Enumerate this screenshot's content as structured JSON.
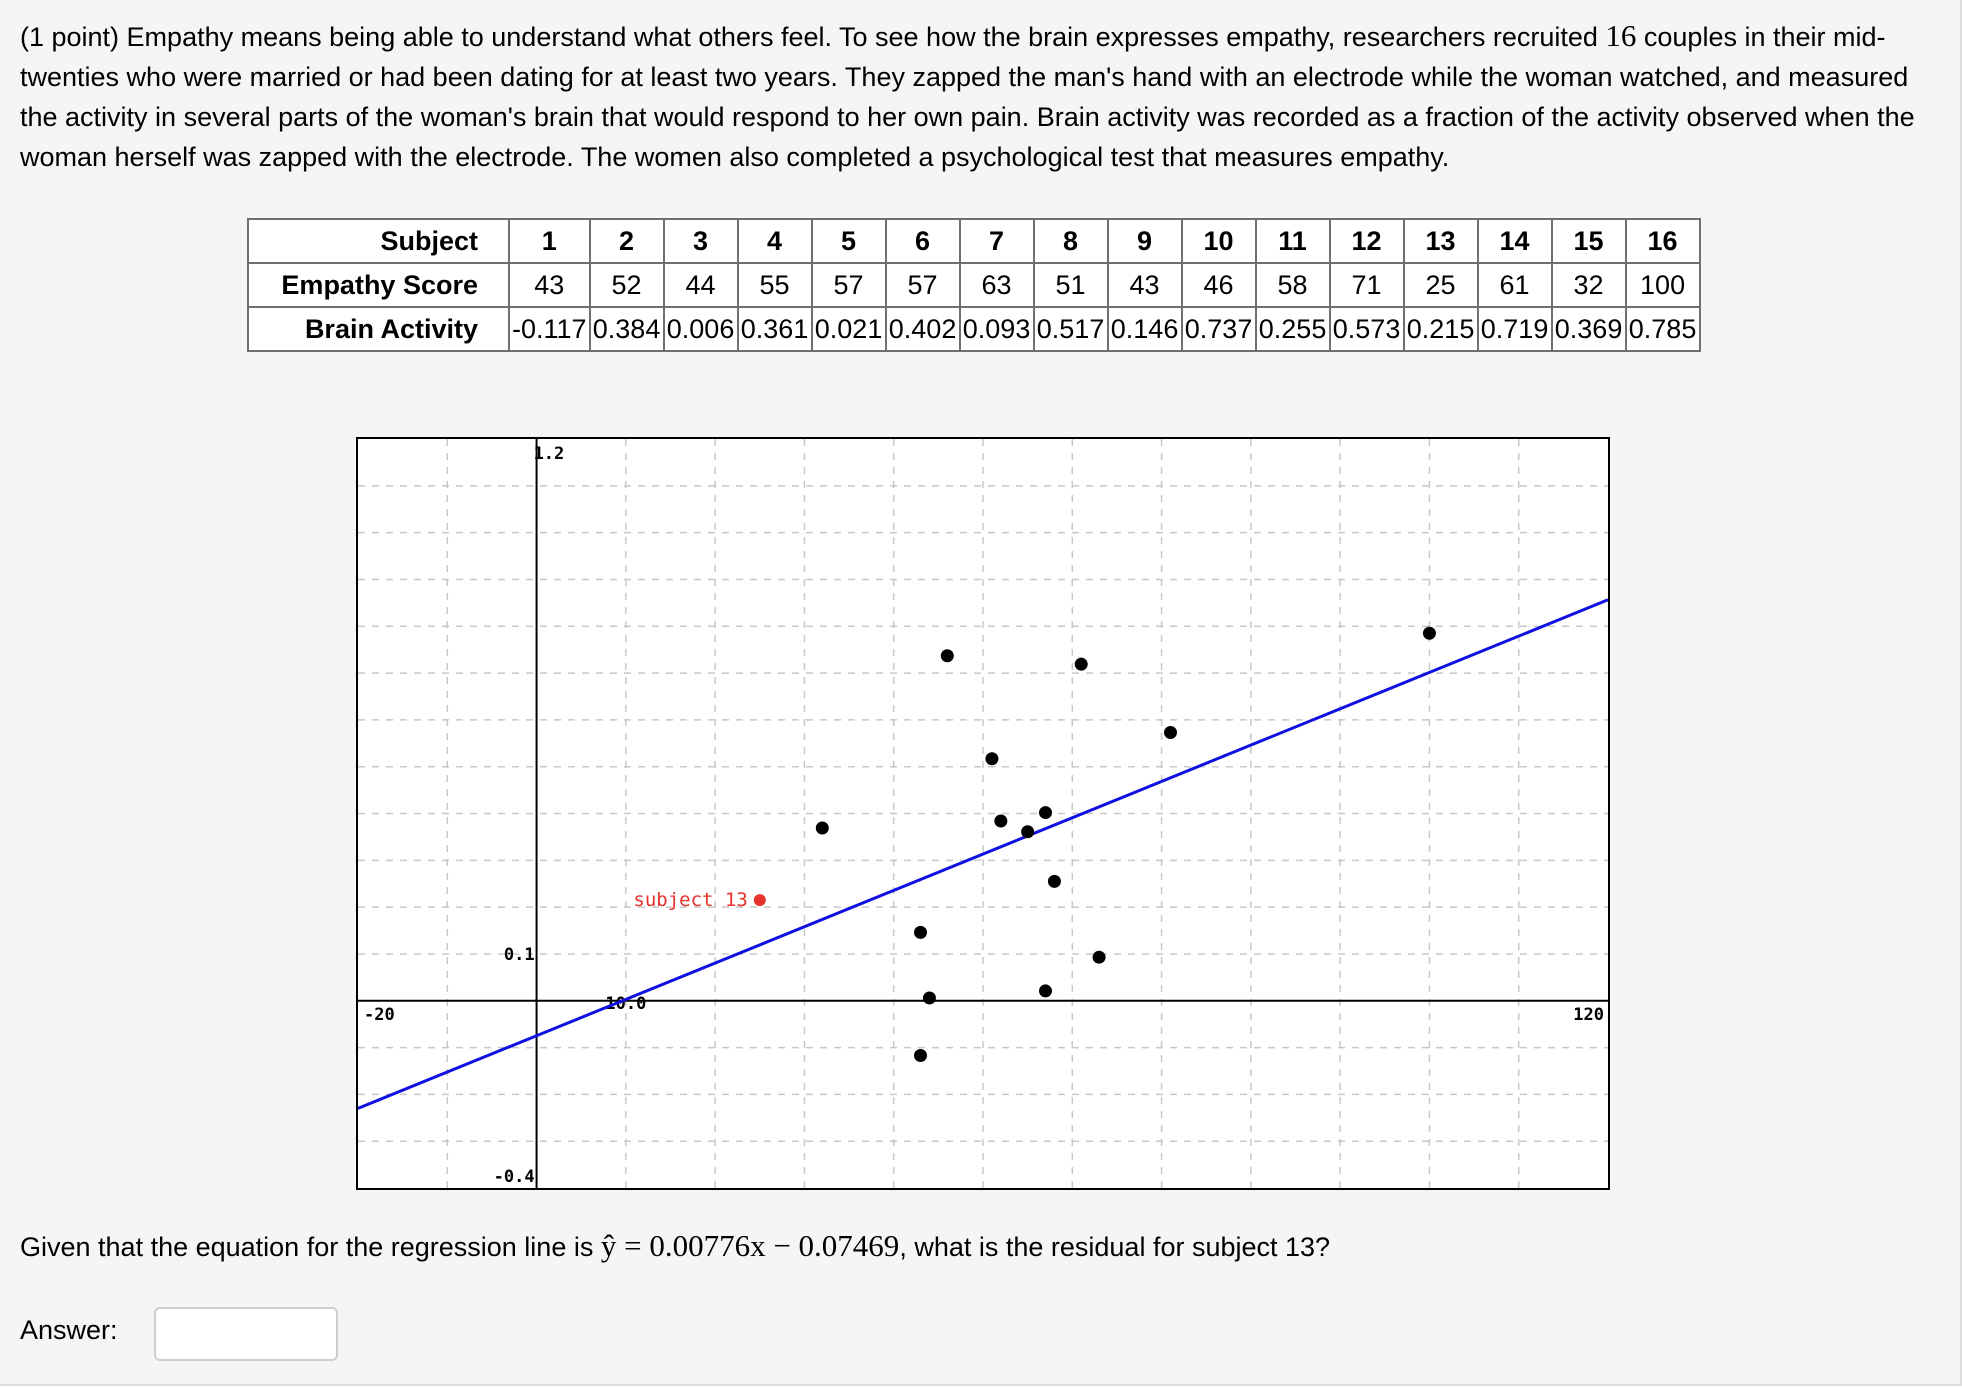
{
  "problem": {
    "text_before": "(1 point) Empathy means being able to understand what others feel. To see how the brain expresses empathy, researchers recruited ",
    "count": "16",
    "text_after": " couples in their mid-twenties who were married or had been dating for at least two years. They zapped the man's hand with an electrode while the woman watched, and measured the activity in several parts of the woman's brain that would respond to her own pain. Brain activity was recorded as a fraction of the activity observed when the woman herself was zapped with the electrode. The women also completed a psychological test that measures empathy."
  },
  "table": {
    "row_labels": [
      "Subject",
      "Empathy Score",
      "Brain Activity"
    ],
    "subjects": [
      "1",
      "2",
      "3",
      "4",
      "5",
      "6",
      "7",
      "8",
      "9",
      "10",
      "11",
      "12",
      "13",
      "14",
      "15",
      "16"
    ],
    "empathy_scores": [
      "43",
      "52",
      "44",
      "55",
      "57",
      "57",
      "63",
      "51",
      "43",
      "46",
      "58",
      "71",
      "25",
      "61",
      "32",
      "100"
    ],
    "brain_activity": [
      "-0.117",
      "0.384",
      "0.006",
      "0.361",
      "0.021",
      "0.402",
      "0.093",
      "0.517",
      "0.146",
      "0.737",
      "0.255",
      "0.573",
      "0.215",
      "0.719",
      "0.369",
      "0.785"
    ]
  },
  "chart_data": {
    "type": "scatter",
    "xlim": [
      -20,
      120
    ],
    "ylim": [
      -0.4,
      1.2
    ],
    "x_gridline_step": 10,
    "y_gridline_step": 0.1,
    "grid": true,
    "axis_labels": {
      "xmin": "-20",
      "xmax": "120",
      "ymax": "1.2",
      "ymin": "-0.4",
      "y_mark": "0.1",
      "x_mark": "10.0"
    },
    "points": [
      {
        "x": 43,
        "y": -0.117
      },
      {
        "x": 52,
        "y": 0.384
      },
      {
        "x": 44,
        "y": 0.006
      },
      {
        "x": 55,
        "y": 0.361
      },
      {
        "x": 57,
        "y": 0.021
      },
      {
        "x": 57,
        "y": 0.402
      },
      {
        "x": 63,
        "y": 0.093
      },
      {
        "x": 51,
        "y": 0.517
      },
      {
        "x": 43,
        "y": 0.146
      },
      {
        "x": 46,
        "y": 0.737
      },
      {
        "x": 58,
        "y": 0.255
      },
      {
        "x": 71,
        "y": 0.573
      },
      {
        "x": 25,
        "y": 0.215
      },
      {
        "x": 61,
        "y": 0.719
      },
      {
        "x": 32,
        "y": 0.369
      },
      {
        "x": 100,
        "y": 0.785
      }
    ],
    "highlight": {
      "x": 25,
      "y": 0.215,
      "label": "subject 13",
      "color": "#e8322c"
    },
    "regression_line": {
      "slope": 0.00776,
      "intercept": -0.07469,
      "color": "#1010e0"
    },
    "point_color": "#000000"
  },
  "question": {
    "before": "Given that the equation for the regression line is ",
    "equation": "ŷ = 0.00776x − 0.07469",
    "after": ", what is the residual for subject 13?"
  },
  "answer": {
    "label": "Answer:",
    "value": ""
  }
}
